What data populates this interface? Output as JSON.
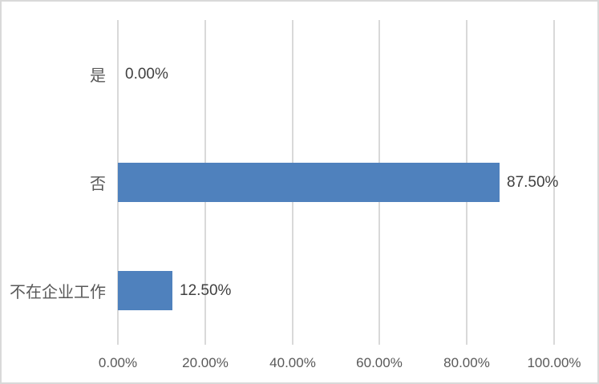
{
  "chart_data": {
    "type": "bar",
    "orientation": "horizontal",
    "title": "",
    "categories": [
      "是",
      "否",
      "不在企业工作"
    ],
    "values": [
      0,
      87.5,
      12.5
    ],
    "value_labels": [
      "0.00%",
      "87.50%",
      "12.50%"
    ],
    "x_ticks": [
      "0.00%",
      "20.00%",
      "40.00%",
      "60.00%",
      "80.00%",
      "100.00%"
    ],
    "xlim": [
      0,
      100
    ],
    "grid": "vertical",
    "legend": "none",
    "bar_color": "#4F81BD",
    "gridline_color": "#D9D9D9",
    "border_color": "#D9D9D9",
    "category_label_color": "#595959",
    "tick_label_color": "#595959",
    "value_label_color": "#404040"
  }
}
